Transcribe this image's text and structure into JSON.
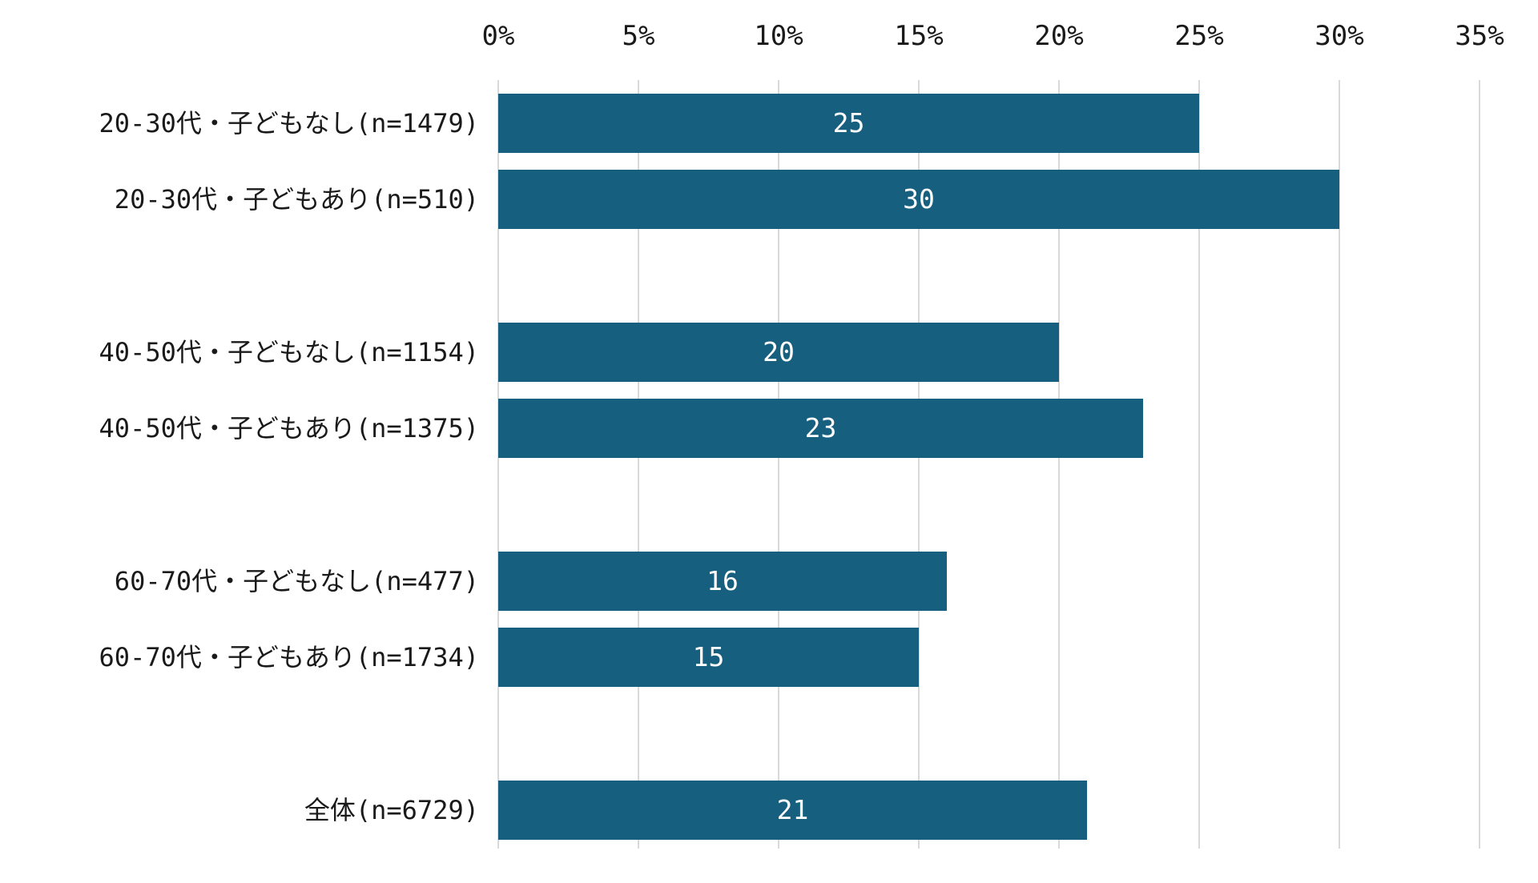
{
  "chart_data": {
    "type": "bar",
    "orientation": "horizontal",
    "title": "",
    "xlabel": "",
    "ylabel": "",
    "categories": [
      "20-30代・子どもなし(n=1479)",
      "20-30代・子どもあり(n=510)",
      "40-50代・子どもなし(n=1154)",
      "40-50代・子どもあり(n=1375)",
      "60-70代・子どもなし(n=477)",
      "60-70代・子どもあり(n=1734)",
      "全体(n=6729)"
    ],
    "values": [
      25,
      30,
      20,
      23,
      16,
      15,
      21
    ],
    "value_labels": [
      "25",
      "30",
      "20",
      "23",
      "16",
      "15",
      "21"
    ],
    "sample_sizes": [
      1479,
      510,
      1154,
      1375,
      477,
      1734,
      6729
    ],
    "x_axis": {
      "position": "top",
      "unit": "%",
      "min": 0,
      "max": 35,
      "step": 5,
      "tick_labels": [
        "0%",
        "5%",
        "10%",
        "15%",
        "20%",
        "25%",
        "30%",
        "35%"
      ]
    },
    "grid": true,
    "legend": false,
    "spacer_after_indices": [
      1,
      3,
      5
    ],
    "colors": {
      "bar": "#165f7e",
      "value_label": "#ffffff",
      "gridline": "#d9d9d9",
      "axis_text": "#1a1a1a",
      "background": "#ffffff"
    }
  }
}
